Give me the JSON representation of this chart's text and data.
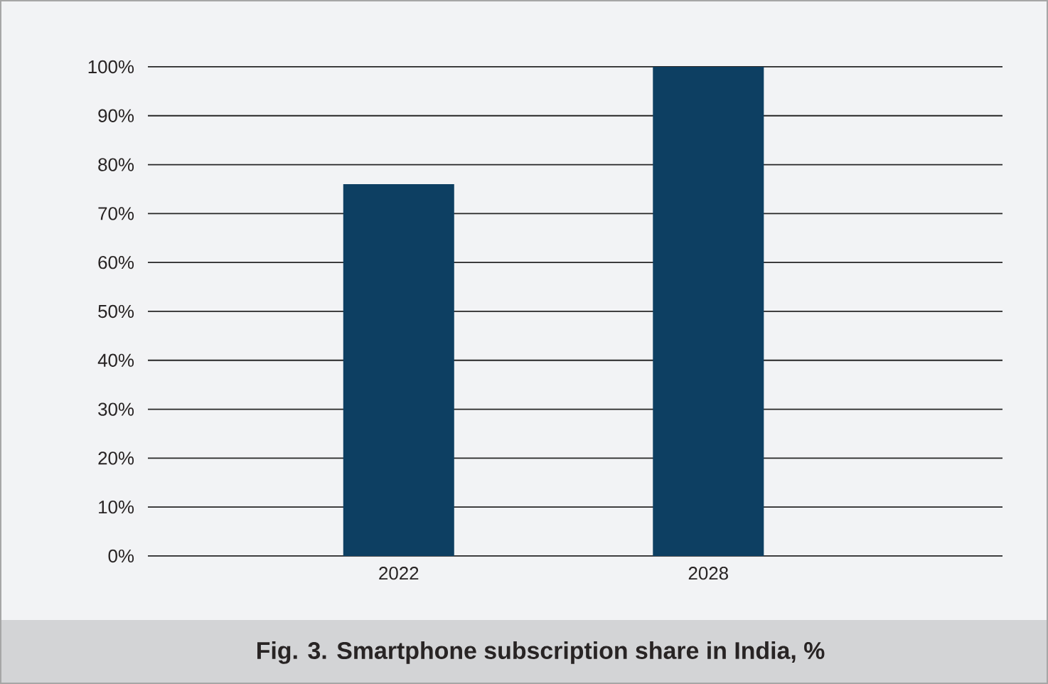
{
  "chart_data": {
    "type": "bar",
    "title": "Fig. 3. Smartphone subscription share in India, %",
    "categories": [
      "2022",
      "2028"
    ],
    "values": [
      76,
      100
    ],
    "color": "#0d3f62",
    "ylim": [
      0,
      100
    ],
    "yticks": [
      {
        "value": 0,
        "label": "0%"
      },
      {
        "value": 10,
        "label": "10%"
      },
      {
        "value": 20,
        "label": "20%"
      },
      {
        "value": 30,
        "label": "30%"
      },
      {
        "value": 40,
        "label": "40%"
      },
      {
        "value": 50,
        "label": "50%"
      },
      {
        "value": 60,
        "label": "60%"
      },
      {
        "value": 70,
        "label": "70%"
      },
      {
        "value": 80,
        "label": "80%"
      },
      {
        "value": 90,
        "label": "90%"
      },
      {
        "value": 100,
        "label": "100%"
      }
    ],
    "grid": "y"
  }
}
